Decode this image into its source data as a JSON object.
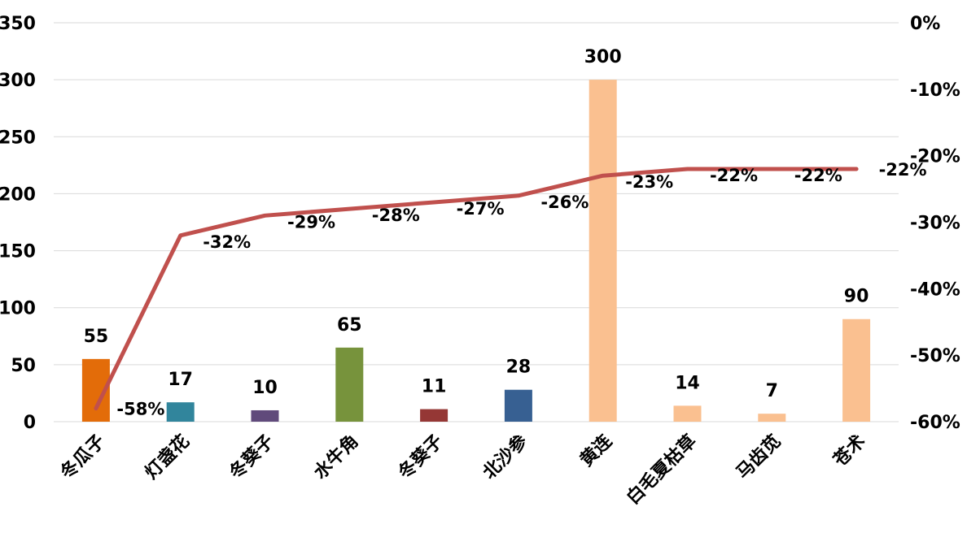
{
  "chart_data": {
    "type": "bar",
    "categories": [
      "冬瓜子",
      "灯盏花",
      "冬葵子",
      "水牛角",
      "冬葵子",
      "北沙参",
      "黄连",
      "白毛夏枯草",
      "马齿苋",
      "苍术"
    ],
    "series": [
      {
        "type": "bar",
        "axis": "left",
        "values": [
          55,
          17,
          10,
          65,
          11,
          28,
          300,
          14,
          7,
          90
        ],
        "colors": [
          "#E36C09",
          "#31859C",
          "#604A7B",
          "#77933C",
          "#953735",
          "#376092",
          "#FAC090",
          "#FAC090",
          "#FAC090",
          "#FAC090"
        ]
      },
      {
        "type": "line",
        "axis": "right",
        "values": [
          -58,
          -32,
          -29,
          -28,
          -27,
          -26,
          -23,
          -22,
          -22,
          -22
        ],
        "value_labels": [
          "-58%",
          "-32%",
          "-29%",
          "-28%",
          "-27%",
          "-26%",
          "-23%",
          "-22%",
          "-22%",
          "-22%"
        ],
        "color": "#C0504D"
      }
    ],
    "y_left": {
      "ylim": [
        0,
        350
      ],
      "ticks": [
        "0",
        "50",
        "100",
        "150",
        "200",
        "250",
        "300",
        "350"
      ]
    },
    "y_right": {
      "ylim": [
        -60,
        0
      ],
      "ticks": [
        "-60%",
        "-50%",
        "-40%",
        "-30%",
        "-20%",
        "-10%",
        "0%"
      ]
    },
    "grid": true,
    "legend": "none",
    "title": "",
    "xlabel": "",
    "ylabel": ""
  }
}
